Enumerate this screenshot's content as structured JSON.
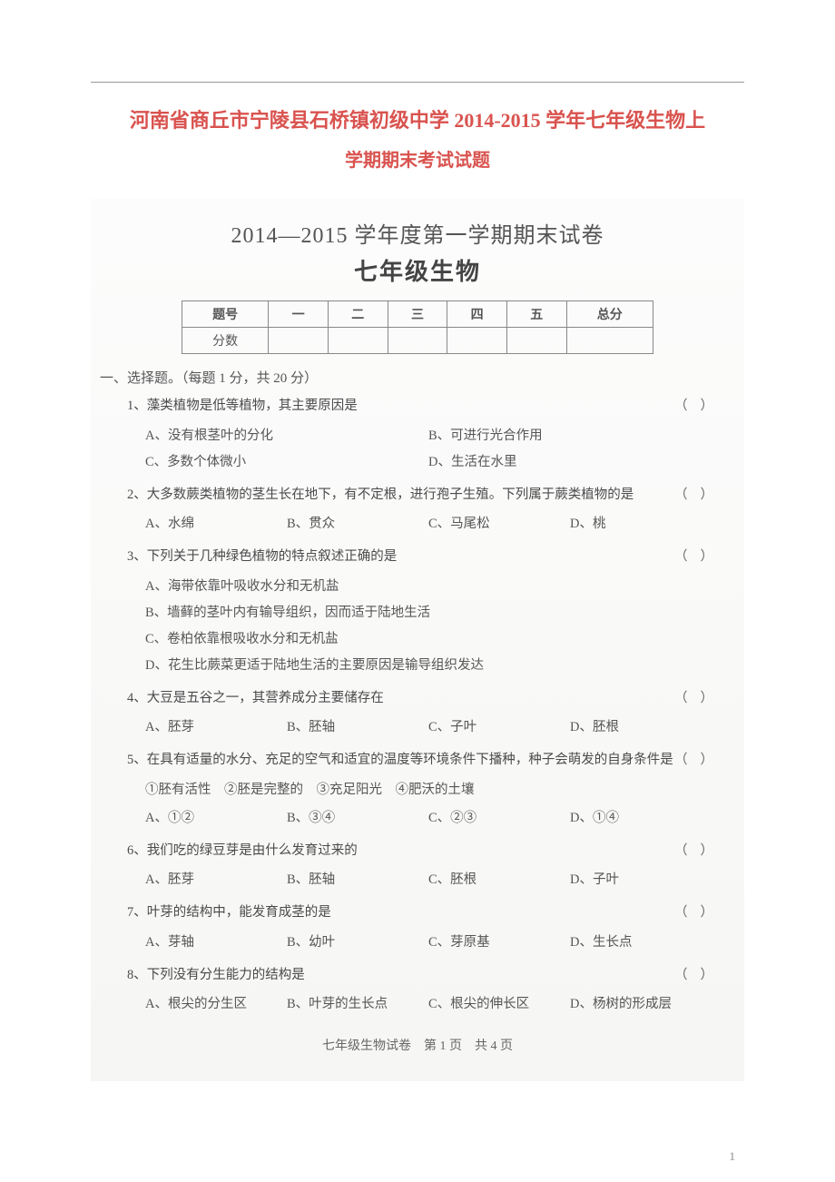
{
  "header": {
    "main_title": "河南省商丘市宁陵县石桥镇初级中学 2014-2015 学年七年级生物上",
    "sub_title": "学期期末考试试题"
  },
  "exam": {
    "semester_title": "2014—2015 学年度第一学期期末试卷",
    "subject_title": "七年级生物"
  },
  "score_table": {
    "cols": [
      "题号",
      "一",
      "二",
      "三",
      "四",
      "五",
      "总分"
    ],
    "row_label": "分数"
  },
  "section1": {
    "label": "一、选择题。（每题 1 分，共 20 分）"
  },
  "questions": [
    {
      "num": "1、",
      "stem": "藻类植物是低等植物，其主要原因是",
      "paren": "（）",
      "layout": "2col",
      "opts": [
        "A、没有根茎叶的分化",
        "B、可进行光合作用",
        "C、多数个体微小",
        "D、生活在水里"
      ]
    },
    {
      "num": "2、",
      "stem": "大多数蕨类植物的茎生长在地下，有不定根，进行孢子生殖。下列属于蕨类植物的是",
      "paren": "（）",
      "layout": "4col",
      "opts": [
        "A、水绵",
        "B、贯众",
        "C、马尾松",
        "D、桃"
      ]
    },
    {
      "num": "3、",
      "stem": "下列关于几种绿色植物的特点叙述正确的是",
      "paren": "（）",
      "layout": "1col",
      "opts": [
        "A、海带依靠叶吸收水分和无机盐",
        "B、墙藓的茎叶内有输导组织，因而适于陆地生活",
        "C、卷柏依靠根吸收水分和无机盐",
        "D、花生比蕨菜更适于陆地生活的主要原因是输导组织发达"
      ]
    },
    {
      "num": "4、",
      "stem": "大豆是五谷之一，其营养成分主要储存在",
      "paren": "（）",
      "layout": "4col",
      "opts": [
        "A、胚芽",
        "B、胚轴",
        "C、子叶",
        "D、胚根"
      ]
    },
    {
      "num": "5、",
      "stem": "在具有适量的水分、充足的空气和适宜的温度等环境条件下播种，种子会萌发的自身条件是",
      "paren": "（）",
      "sub": "①胚有活性　②胚是完整的　③充足阳光　④肥沃的土壤",
      "layout": "4col",
      "opts": [
        "A、①②",
        "B、③④",
        "C、②③",
        "D、①④"
      ]
    },
    {
      "num": "6、",
      "stem": "我们吃的绿豆芽是由什么发育过来的",
      "paren": "（）",
      "layout": "4col",
      "opts": [
        "A、胚芽",
        "B、胚轴",
        "C、胚根",
        "D、子叶"
      ]
    },
    {
      "num": "7、",
      "stem": "叶芽的结构中，能发育成茎的是",
      "paren": "（）",
      "layout": "4col",
      "opts": [
        "A、芽轴",
        "B、幼叶",
        "C、芽原基",
        "D、生长点"
      ]
    },
    {
      "num": "8、",
      "stem": "下列没有分生能力的结构是",
      "paren": "（）",
      "layout": "4col",
      "opts": [
        "A、根尖的分生区",
        "B、叶芽的生长点",
        "C、根尖的伸长区",
        "D、杨树的形成层"
      ]
    }
  ],
  "footer": {
    "text": "七年级生物试卷　第 1 页　共 4 页"
  },
  "page_number": "1"
}
